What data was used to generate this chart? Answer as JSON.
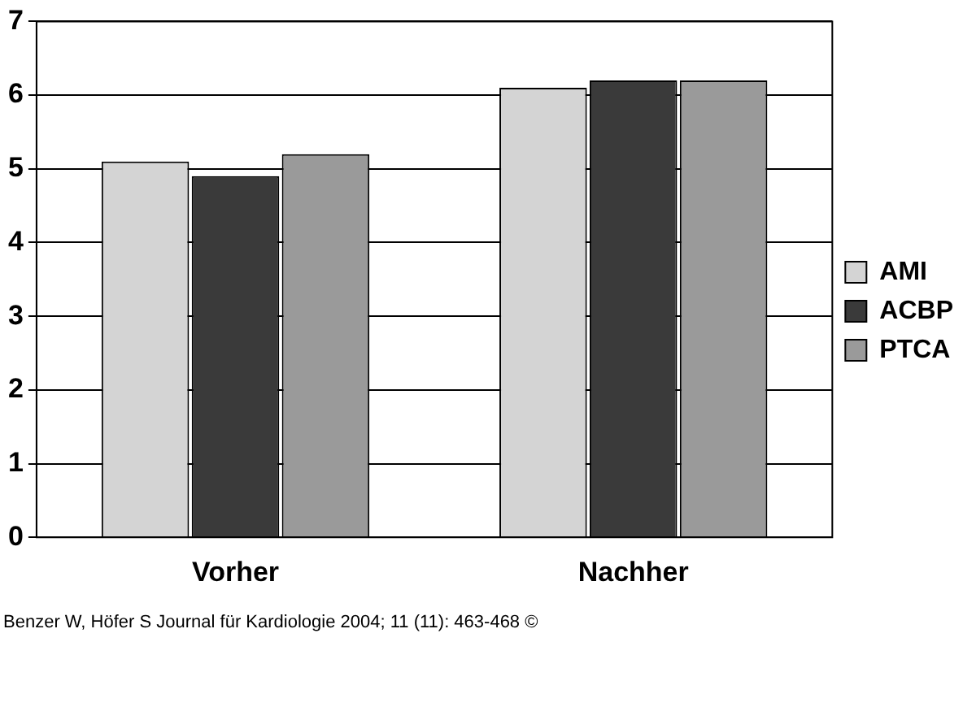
{
  "chart_data": {
    "type": "bar",
    "categories": [
      "Vorher",
      "Nachher"
    ],
    "series": [
      {
        "name": "AMI",
        "color": "#d4d4d4",
        "values": [
          5.1,
          6.1
        ]
      },
      {
        "name": "ACBP",
        "color": "#3a3a3a",
        "values": [
          4.9,
          6.2
        ]
      },
      {
        "name": "PTCA",
        "color": "#9a9a9a",
        "values": [
          5.2,
          6.2
        ]
      }
    ],
    "ylim": [
      0,
      7
    ],
    "yticks": [
      0,
      1,
      2,
      3,
      4,
      5,
      6,
      7
    ],
    "grid": "y",
    "legend": "right",
    "annotations": [
      "Benzer W, Höfer S Journal für Kardiologie 2004; 11 (11): 463-468 ©"
    ]
  }
}
